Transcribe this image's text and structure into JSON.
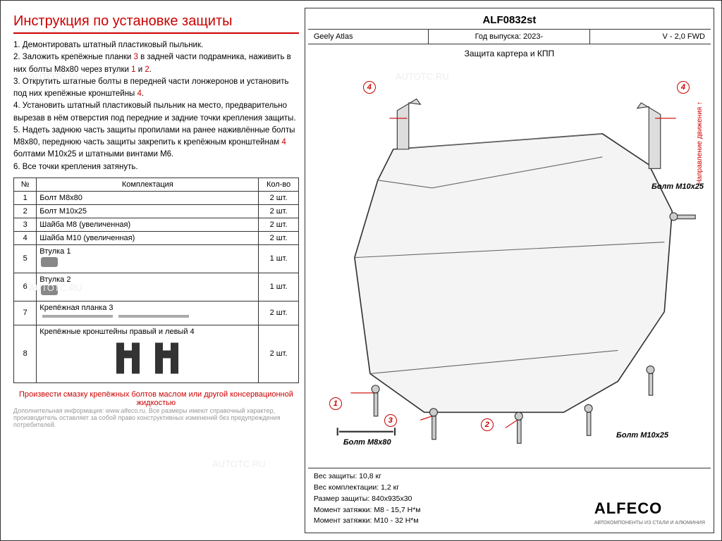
{
  "title": "Инструкция по установке защиты",
  "steps": [
    "1. Демонтировать штатный пластиковый пыльник.",
    "2. Заложить крепёжные планки <span class='red'>3</span> в задней части подрамника, наживить в них болты М8х80 через втулки <span class='red'>1</span> и <span class='red'>2</span>.",
    "3. Открутить штатные болты в передней части лонжеронов и установить под них крепёжные кронштейны <span class='red'>4</span>.",
    "4. Установить штатный пластиковый пыльник на место, предварительно вырезав в нём отверстия под передние и задние точки крепления защиты.",
    "5. Надеть заднюю часть защиты пропилами на ранее наживлённые болты М8х80, переднюю часть защиты закрепить к крепёжным кронштейнам <span class='red'>4</span> болтами М10х25 и штатными винтами М6.",
    "6. Все точки крепления затянуть."
  ],
  "table": {
    "headers": [
      "№",
      "Комплектация",
      "Кол-во"
    ],
    "rows": [
      [
        "1",
        "Болт М8х80",
        "2 шт."
      ],
      [
        "2",
        "Болт М10х25",
        "2 шт."
      ],
      [
        "3",
        "Шайба М8 (увеличенная)",
        "2 шт."
      ],
      [
        "4",
        "Шайба М10 (увеличенная)",
        "2 шт."
      ],
      [
        "5",
        "Втулка <span class='red'>1</span>",
        "1 шт."
      ],
      [
        "6",
        "Втулка <span class='red'>2</span>",
        "1 шт."
      ],
      [
        "7",
        "Крепёжная планка <span class='red'>3</span>",
        "2 шт."
      ],
      [
        "8",
        "Крепёжные кронштейны правый и левый <span class='red'>4</span>",
        "2 шт."
      ]
    ]
  },
  "note_red": "Произвести смазку крепёжных болтов маслом или другой консервационной жидкостью",
  "note_gray": "Дополнительная информация: www.alfeco.ru. Все размеры имеют справочный характер, производитель оставляет за собой право конструктивных изменений без предупреждения потребителей.",
  "header": {
    "code": "ALF0832st",
    "model": "Geely Atlas",
    "year": "Год выпуска: 2023-",
    "engine": "V - 2,0 FWD",
    "subtitle": "Защита картера и КПП"
  },
  "direction": "Направление движения",
  "labels": {
    "bolt_m10": "Болт М10х25",
    "bolt_m8": "Болт М8х80"
  },
  "specs": [
    "Вес защиты: 10,8 кг",
    "Вес комплектации: 1,2 кг",
    "Размер защиты: 840х935х30",
    "Момент затяжки:   M8 - 15,7 Н*м",
    "Момент затяжки:   М10 - 32 Н*м"
  ],
  "logo": "ALFECO",
  "logo_sub": "АВТОКОМПОНЕНТЫ ИЗ СТАЛИ И АЛЮМИНИЯ",
  "watermark": "AUTOTC.RU",
  "colors": {
    "accent": "#c00",
    "border": "#333",
    "gray": "#999"
  }
}
